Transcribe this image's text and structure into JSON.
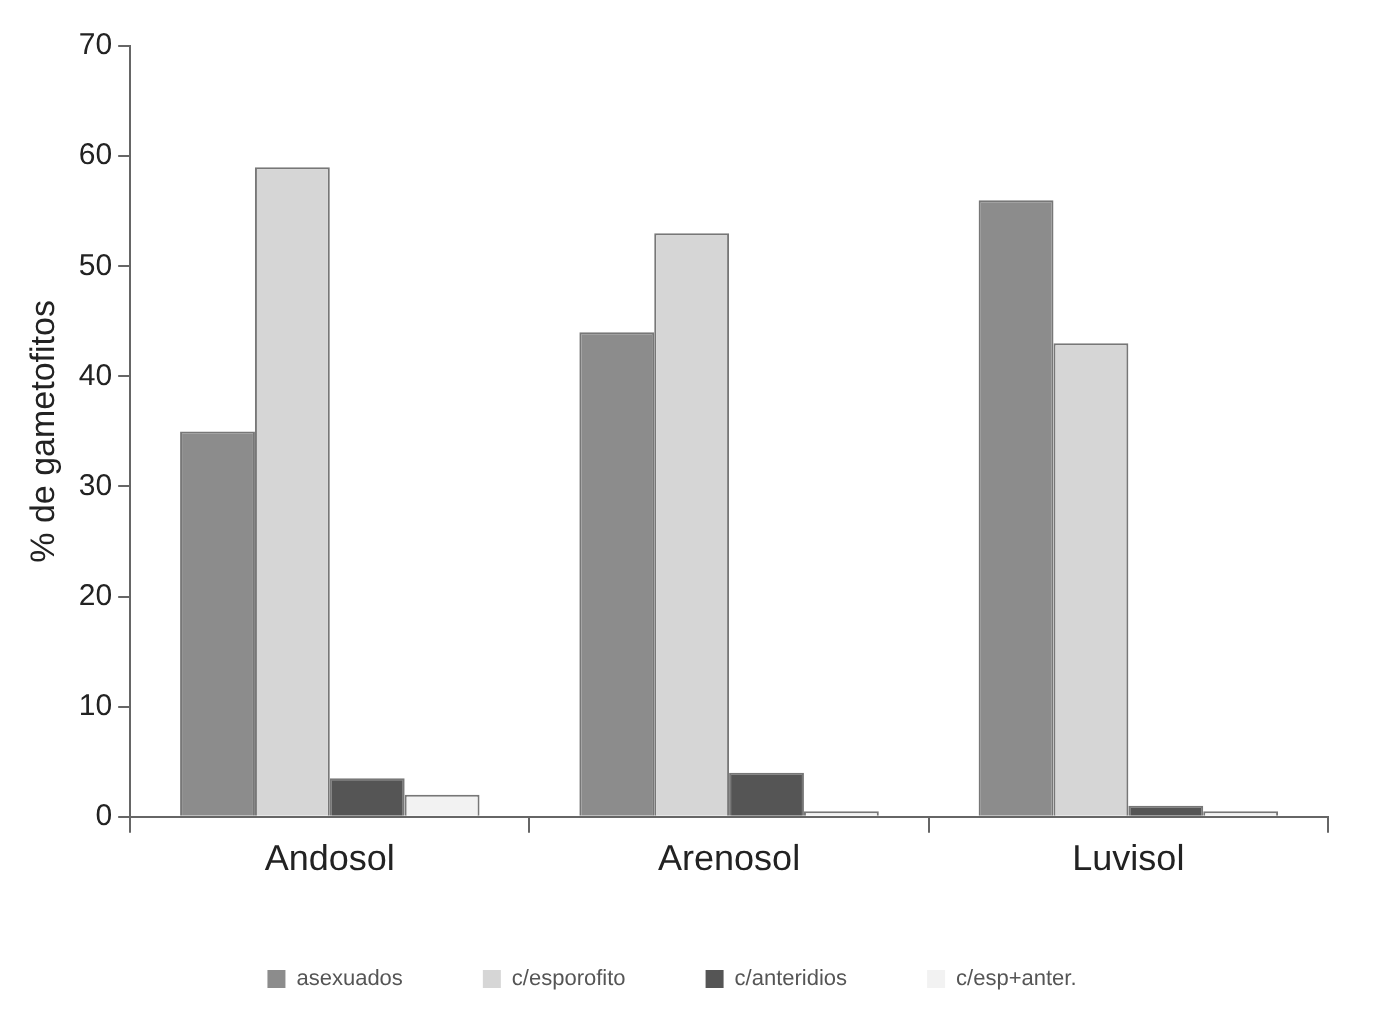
{
  "chart_data": {
    "type": "bar",
    "ylabel": "% de gametofitos",
    "categories": [
      "Andosol",
      "Arenosol",
      "Luvisol"
    ],
    "series": [
      {
        "name": "asexuados",
        "color": "#8c8c8c",
        "values": [
          35,
          44,
          56
        ]
      },
      {
        "name": "c/esporofito",
        "color": "#d6d6d6",
        "values": [
          59,
          53,
          43
        ]
      },
      {
        "name": "c/anteridios",
        "color": "#555555",
        "values": [
          3.5,
          4,
          1
        ]
      },
      {
        "name": "c/esp+anter.",
        "color": "#f2f2f2",
        "values": [
          2,
          0.5,
          0.5
        ]
      }
    ],
    "ylim": [
      0,
      70
    ],
    "yticks": [
      0,
      10,
      20,
      30,
      40,
      50,
      60,
      70
    ],
    "grid": false,
    "legend": "bottom"
  }
}
